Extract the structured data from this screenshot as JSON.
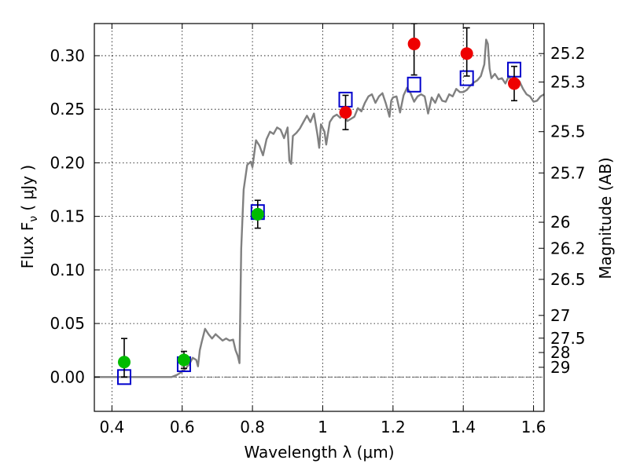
{
  "chart_data": {
    "type": "scatter",
    "xlabel": "Wavelength  λ (μm)",
    "ylabel": "Flux  F",
    "ylabel_sub": "ν",
    "ylabel_unit": "  ( μJy )",
    "y2label": "Magnitude (AB)",
    "xlim": [
      0.35,
      1.63
    ],
    "ylim": [
      -0.032,
      0.33
    ],
    "grid": true,
    "x_ticks": [
      {
        "value": 0.4,
        "label": "0.4"
      },
      {
        "value": 0.6,
        "label": "0.6"
      },
      {
        "value": 0.8,
        "label": "0.8"
      },
      {
        "value": 1.0,
        "label": "1"
      },
      {
        "value": 1.2,
        "label": "1.2"
      },
      {
        "value": 1.4,
        "label": "1.4"
      },
      {
        "value": 1.6,
        "label": "1.6"
      }
    ],
    "y_ticks": [
      {
        "value": 0.0,
        "label": "0.00"
      },
      {
        "value": 0.05,
        "label": "0.05"
      },
      {
        "value": 0.1,
        "label": "0.10"
      },
      {
        "value": 0.15,
        "label": "0.15"
      },
      {
        "value": 0.2,
        "label": "0.20"
      },
      {
        "value": 0.25,
        "label": "0.25"
      },
      {
        "value": 0.3,
        "label": "0.30"
      }
    ],
    "y2_ticks": [
      {
        "mag": 25.2,
        "label": "25.2"
      },
      {
        "mag": 25.3,
        "label": "25.3"
      },
      {
        "mag": 25.5,
        "label": "25.5"
      },
      {
        "mag": 25.7,
        "label": "25.7"
      },
      {
        "mag": 26.0,
        "label": "26"
      },
      {
        "mag": 26.2,
        "label": "26.2"
      },
      {
        "mag": 26.5,
        "label": "26.5"
      },
      {
        "mag": 27.0,
        "label": "27"
      },
      {
        "mag": 27.5,
        "label": "27.5"
      },
      {
        "mag": 28.0,
        "label": "28"
      },
      {
        "mag": 29.0,
        "label": "29"
      }
    ],
    "zero_line": 0.0,
    "series": [
      {
        "kind": "line",
        "color": "#808080",
        "points": [
          [
            0.35,
            0.0
          ],
          [
            0.4,
            0.0
          ],
          [
            0.45,
            0.0
          ],
          [
            0.5,
            0.0
          ],
          [
            0.55,
            0.0
          ],
          [
            0.57,
            0.0
          ],
          [
            0.585,
            0.002
          ],
          [
            0.6,
            0.005
          ],
          [
            0.61,
            0.008
          ],
          [
            0.62,
            0.012
          ],
          [
            0.63,
            0.018
          ],
          [
            0.64,
            0.016
          ],
          [
            0.645,
            0.01
          ],
          [
            0.65,
            0.025
          ],
          [
            0.655,
            0.032
          ],
          [
            0.665,
            0.045
          ],
          [
            0.675,
            0.04
          ],
          [
            0.685,
            0.036
          ],
          [
            0.695,
            0.04
          ],
          [
            0.705,
            0.037
          ],
          [
            0.715,
            0.034
          ],
          [
            0.725,
            0.036
          ],
          [
            0.735,
            0.034
          ],
          [
            0.745,
            0.035
          ],
          [
            0.752,
            0.025
          ],
          [
            0.758,
            0.02
          ],
          [
            0.763,
            0.013
          ],
          [
            0.768,
            0.12
          ],
          [
            0.775,
            0.175
          ],
          [
            0.785,
            0.198
          ],
          [
            0.795,
            0.201
          ],
          [
            0.8,
            0.196
          ],
          [
            0.81,
            0.221
          ],
          [
            0.82,
            0.216
          ],
          [
            0.83,
            0.207
          ],
          [
            0.84,
            0.222
          ],
          [
            0.85,
            0.229
          ],
          [
            0.86,
            0.227
          ],
          [
            0.87,
            0.233
          ],
          [
            0.88,
            0.231
          ],
          [
            0.89,
            0.223
          ],
          [
            0.9,
            0.233
          ],
          [
            0.905,
            0.202
          ],
          [
            0.91,
            0.199
          ],
          [
            0.915,
            0.225
          ],
          [
            0.925,
            0.228
          ],
          [
            0.935,
            0.232
          ],
          [
            0.945,
            0.238
          ],
          [
            0.955,
            0.244
          ],
          [
            0.965,
            0.238
          ],
          [
            0.975,
            0.246
          ],
          [
            0.985,
            0.226
          ],
          [
            0.99,
            0.214
          ],
          [
            0.995,
            0.236
          ],
          [
            1.005,
            0.229
          ],
          [
            1.01,
            0.217
          ],
          [
            1.02,
            0.238
          ],
          [
            1.03,
            0.243
          ],
          [
            1.04,
            0.245
          ],
          [
            1.05,
            0.242
          ],
          [
            1.06,
            0.246
          ],
          [
            1.07,
            0.239
          ],
          [
            1.08,
            0.241
          ],
          [
            1.09,
            0.243
          ],
          [
            1.1,
            0.251
          ],
          [
            1.11,
            0.248
          ],
          [
            1.12,
            0.256
          ],
          [
            1.13,
            0.262
          ],
          [
            1.14,
            0.264
          ],
          [
            1.15,
            0.256
          ],
          [
            1.16,
            0.262
          ],
          [
            1.17,
            0.265
          ],
          [
            1.18,
            0.255
          ],
          [
            1.19,
            0.243
          ],
          [
            1.195,
            0.258
          ],
          [
            1.2,
            0.261
          ],
          [
            1.21,
            0.262
          ],
          [
            1.22,
            0.247
          ],
          [
            1.23,
            0.263
          ],
          [
            1.24,
            0.27
          ],
          [
            1.25,
            0.265
          ],
          [
            1.26,
            0.257
          ],
          [
            1.27,
            0.262
          ],
          [
            1.28,
            0.264
          ],
          [
            1.29,
            0.262
          ],
          [
            1.3,
            0.246
          ],
          [
            1.31,
            0.261
          ],
          [
            1.32,
            0.256
          ],
          [
            1.33,
            0.264
          ],
          [
            1.34,
            0.258
          ],
          [
            1.35,
            0.257
          ],
          [
            1.36,
            0.264
          ],
          [
            1.37,
            0.262
          ],
          [
            1.38,
            0.269
          ],
          [
            1.39,
            0.266
          ],
          [
            1.4,
            0.266
          ],
          [
            1.41,
            0.268
          ],
          [
            1.42,
            0.272
          ],
          [
            1.43,
            0.275
          ],
          [
            1.44,
            0.277
          ],
          [
            1.45,
            0.281
          ],
          [
            1.46,
            0.292
          ],
          [
            1.465,
            0.315
          ],
          [
            1.47,
            0.311
          ],
          [
            1.475,
            0.288
          ],
          [
            1.48,
            0.279
          ],
          [
            1.49,
            0.283
          ],
          [
            1.5,
            0.278
          ],
          [
            1.51,
            0.279
          ],
          [
            1.52,
            0.274
          ],
          [
            1.53,
            0.281
          ],
          [
            1.54,
            0.274
          ],
          [
            1.55,
            0.27
          ],
          [
            1.56,
            0.276
          ],
          [
            1.57,
            0.269
          ],
          [
            1.58,
            0.264
          ],
          [
            1.59,
            0.262
          ],
          [
            1.6,
            0.257
          ],
          [
            1.61,
            0.258
          ],
          [
            1.62,
            0.262
          ],
          [
            1.63,
            0.264
          ]
        ]
      },
      {
        "kind": "open-square",
        "color": "#0000cc",
        "points": [
          [
            0.435,
            0.0
          ],
          [
            0.605,
            0.012
          ],
          [
            0.815,
            0.154
          ],
          [
            1.065,
            0.259
          ],
          [
            1.26,
            0.273
          ],
          [
            1.41,
            0.279
          ],
          [
            1.545,
            0.287
          ]
        ]
      },
      {
        "kind": "filled-circle",
        "color": "#00bb00",
        "points": [
          {
            "x": 0.435,
            "y": 0.014,
            "lo": 0.0,
            "hi": 0.036
          },
          {
            "x": 0.605,
            "y": 0.016,
            "lo": 0.008,
            "hi": 0.024
          },
          {
            "x": 0.815,
            "y": 0.152,
            "lo": 0.139,
            "hi": 0.165
          }
        ]
      },
      {
        "kind": "filled-circle",
        "color": "#ee0000",
        "points": [
          {
            "x": 1.065,
            "y": 0.247,
            "lo": 0.231,
            "hi": 0.263
          },
          {
            "x": 1.26,
            "y": 0.311,
            "lo": 0.282,
            "hi": 0.33
          },
          {
            "x": 1.41,
            "y": 0.302,
            "lo": 0.281,
            "hi": 0.326
          },
          {
            "x": 1.545,
            "y": 0.274,
            "lo": 0.258,
            "hi": 0.29
          }
        ]
      }
    ]
  }
}
